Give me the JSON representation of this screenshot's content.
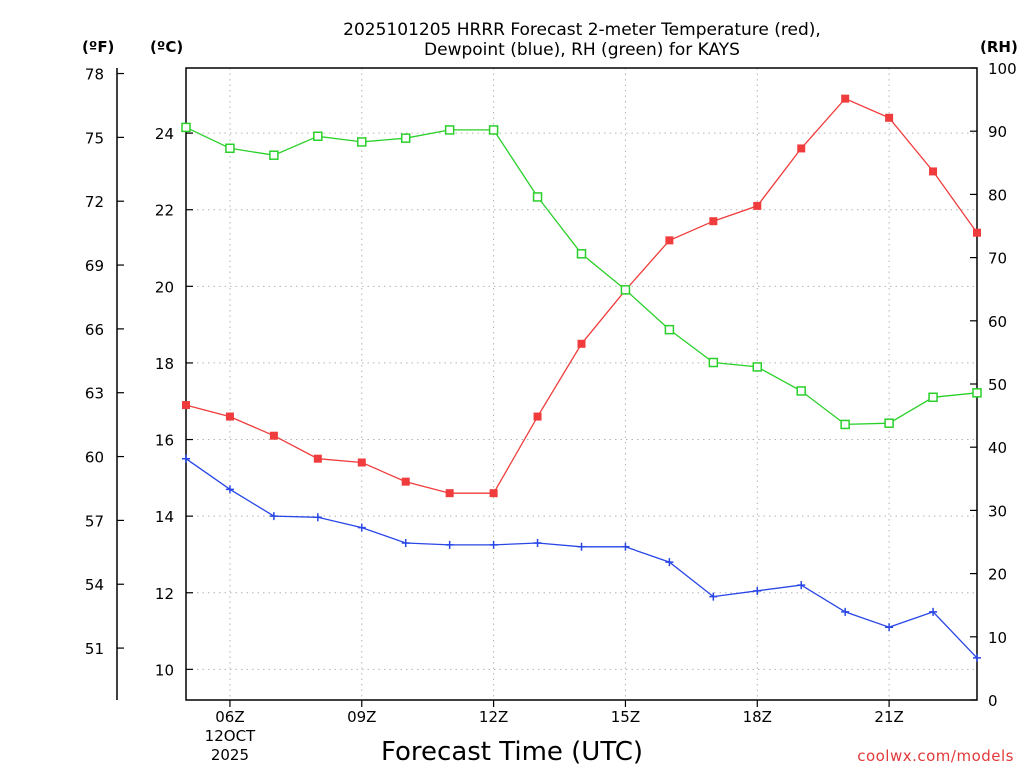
{
  "chart_data": {
    "type": "line",
    "title_line1": "2025101205 HRRR Forecast 2-meter Temperature (red),",
    "title_line2": "Dewpoint (blue), RH (green) for KAYS",
    "xlabel": "Forecast Time (UTC)",
    "credit": "coolwx.com/models",
    "units": {
      "fahrenheit": "(ºF)",
      "celsius": "(ºC)",
      "rh": "(RH)"
    },
    "x_hours": [
      5,
      6,
      7,
      8,
      9,
      10,
      11,
      12,
      13,
      14,
      15,
      16,
      17,
      18,
      19,
      20,
      21,
      22,
      23
    ],
    "xlim": [
      5,
      23
    ],
    "x_ticks": [
      {
        "hour": 6,
        "label": "06Z",
        "sub1": "12OCT",
        "sub2": "2025"
      },
      {
        "hour": 9,
        "label": "09Z"
      },
      {
        "hour": 12,
        "label": "12Z"
      },
      {
        "hour": 15,
        "label": "15Z"
      },
      {
        "hour": 18,
        "label": "18Z"
      },
      {
        "hour": 21,
        "label": "21Z"
      }
    ],
    "celsius_range": [
      9.2,
      25.7
    ],
    "celsius_ticks": [
      10,
      12,
      14,
      16,
      18,
      20,
      22,
      24
    ],
    "fahrenheit_ticks": [
      51,
      54,
      57,
      60,
      63,
      66,
      69,
      72,
      75,
      78
    ],
    "rh_range": [
      0,
      100
    ],
    "rh_ticks": [
      0,
      10,
      20,
      30,
      40,
      50,
      60,
      70,
      80,
      90,
      100
    ],
    "grid": true,
    "series": [
      {
        "name": "Temperature",
        "unit": "C",
        "color": "#f03c3c",
        "marker": "filled-square",
        "values": [
          16.9,
          16.6,
          16.1,
          15.5,
          15.4,
          14.9,
          14.6,
          14.6,
          16.6,
          18.5,
          19.9,
          21.2,
          21.7,
          22.1,
          23.6,
          24.9,
          24.4,
          23.0,
          21.4
        ]
      },
      {
        "name": "Dewpoint",
        "unit": "C",
        "color": "#2846e6",
        "marker": "plus",
        "values": [
          15.5,
          14.7,
          14.0,
          13.97,
          13.7,
          13.3,
          13.25,
          13.25,
          13.3,
          13.2,
          13.2,
          12.8,
          11.9,
          12.05,
          12.2,
          11.5,
          11.1,
          11.5,
          10.3
        ]
      },
      {
        "name": "Relative Humidity",
        "unit": "%",
        "color": "#2ad02a",
        "marker": "open-square",
        "values": [
          90.6,
          87.3,
          86.2,
          89.2,
          88.3,
          88.9,
          90.2,
          90.2,
          79.6,
          70.6,
          64.9,
          58.6,
          53.4,
          52.7,
          48.9,
          43.6,
          43.8,
          47.9,
          48.6
        ]
      }
    ]
  }
}
